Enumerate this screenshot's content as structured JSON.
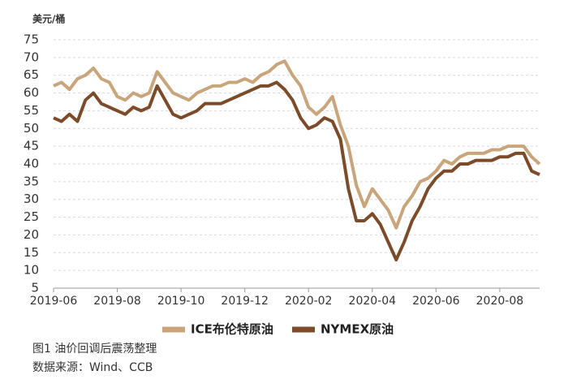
{
  "chart_data": {
    "type": "line",
    "y_label": "美元/桶",
    "caption": "图1  油价回调后震荡整理",
    "source": "数据来源：Wind、CCB",
    "categories": [
      "2019-06",
      null,
      null,
      null,
      null,
      null,
      null,
      null,
      "2019-08",
      null,
      null,
      null,
      null,
      null,
      null,
      null,
      "2019-10",
      null,
      null,
      null,
      null,
      null,
      null,
      null,
      "2019-12",
      null,
      null,
      null,
      null,
      null,
      null,
      null,
      "2020-02",
      null,
      null,
      null,
      null,
      null,
      null,
      null,
      "2020-04",
      null,
      null,
      null,
      null,
      null,
      null,
      null,
      "2020-06",
      null,
      null,
      null,
      null,
      null,
      null,
      null,
      "2020-08",
      null,
      null,
      null,
      null,
      null
    ],
    "series": [
      {
        "name": "ICE布伦特原油",
        "color": "#c9a57b",
        "values": [
          62,
          63,
          61,
          64,
          65,
          67,
          64,
          63,
          59,
          58,
          60,
          59,
          60,
          66,
          63,
          60,
          59,
          58,
          60,
          61,
          62,
          62,
          63,
          63,
          64,
          63,
          65,
          66,
          68,
          69,
          65,
          62,
          56,
          54,
          56,
          59,
          51,
          45,
          34,
          28,
          33,
          30,
          27,
          22,
          28,
          31,
          35,
          36,
          38,
          41,
          40,
          42,
          43,
          43,
          43,
          44,
          44,
          45,
          45,
          45,
          42,
          40
        ]
      },
      {
        "name": "NYMEX原油",
        "color": "#7b4b2a",
        "values": [
          53,
          52,
          54,
          52,
          58,
          60,
          57,
          56,
          55,
          54,
          56,
          55,
          56,
          62,
          58,
          54,
          53,
          54,
          55,
          57,
          57,
          57,
          58,
          59,
          60,
          61,
          62,
          62,
          63,
          61,
          58,
          53,
          50,
          51,
          53,
          52,
          47,
          33,
          24,
          24,
          26,
          23,
          18,
          13,
          18,
          24,
          28,
          33,
          36,
          38,
          38,
          40,
          40,
          41,
          41,
          41,
          42,
          42,
          43,
          43,
          38,
          37
        ]
      }
    ],
    "ylim": [
      5,
      75
    ],
    "yticks": [
      5,
      10,
      15,
      20,
      25,
      30,
      35,
      40,
      45,
      50,
      55,
      60,
      65,
      70,
      75
    ],
    "grid": true,
    "legend": "bottom"
  }
}
